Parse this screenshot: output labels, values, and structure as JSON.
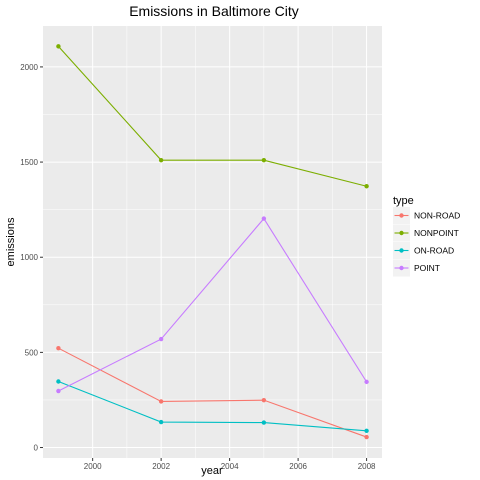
{
  "chart_data": {
    "type": "line",
    "title": "Emissions in Baltimore City",
    "xlabel": "year",
    "ylabel": "emissions",
    "x": [
      1999,
      2002,
      2005,
      2008
    ],
    "xlim": [
      1998.55,
      2008.45
    ],
    "ylim": [
      -55,
      2215
    ],
    "x_ticks": [
      2000,
      2002,
      2004,
      2006,
      2008
    ],
    "y_ticks": [
      0,
      500,
      1000,
      1500,
      2000
    ],
    "grid": true,
    "legend": {
      "title": "type",
      "placement": "right"
    },
    "series": [
      {
        "name": "NON-ROAD",
        "color": "#F8766D",
        "values": [
          522,
          242,
          249,
          55
        ]
      },
      {
        "name": "NONPOINT",
        "color": "#7CAE00",
        "values": [
          2108,
          1510,
          1510,
          1373
        ]
      },
      {
        "name": "ON-ROAD",
        "color": "#00BFC4",
        "values": [
          347,
          134,
          131,
          88
        ]
      },
      {
        "name": "POINT",
        "color": "#C77CFF",
        "values": [
          297,
          570,
          1203,
          345
        ]
      }
    ]
  },
  "colors": {
    "panel_background": "#EBEBEB",
    "grid_major": "#FFFFFF"
  }
}
